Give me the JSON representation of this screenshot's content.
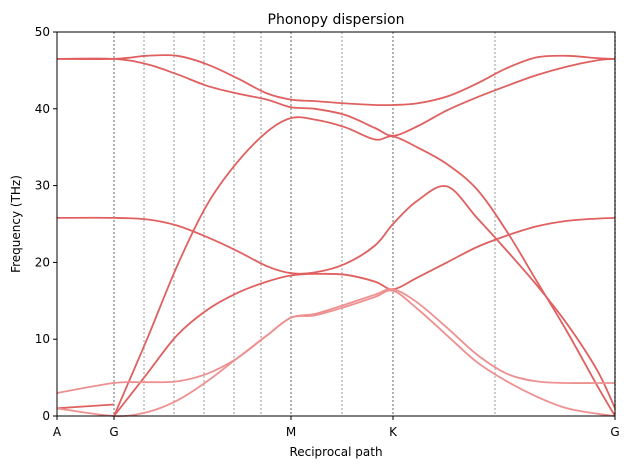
{
  "chart_data": {
    "type": "line",
    "title": "Phonopy dispersion",
    "xlabel": "Reciprocal path",
    "ylabel": "Frequency (THz)",
    "ylim": [
      0,
      50
    ],
    "yticks": [
      0,
      10,
      20,
      30,
      40,
      50
    ],
    "xlim": [
      0,
      9.3
    ],
    "xticks": [
      {
        "x": 0,
        "label": "A"
      },
      {
        "x": 0.95,
        "label": "G"
      },
      {
        "x": 3.9,
        "label": "M"
      },
      {
        "x": 5.6,
        "label": "K"
      },
      {
        "x": 9.3,
        "label": "G"
      }
    ],
    "segment_lines": {
      "color": "#999999",
      "positions": [
        0.95,
        3.9,
        5.6,
        9.3
      ]
    },
    "sub_lines": {
      "color": "#bbbbbb",
      "positions": [
        1.45,
        1.95,
        2.45,
        2.95,
        3.4,
        4.75,
        7.3
      ]
    },
    "grid": false,
    "legend": "none",
    "colors": {
      "primary": "#e06060",
      "secondary": "#ee9090"
    },
    "series": [
      {
        "color": "#e06060",
        "x": [
          0,
          0.95,
          1.5,
          2.0,
          2.5,
          3.0,
          3.5,
          3.9,
          4.3,
          4.8,
          5.3,
          5.6,
          6.0,
          6.5,
          7.0,
          7.5,
          8.0,
          8.5,
          9.0,
          9.3
        ],
        "y": [
          46.5,
          46.5,
          46.9,
          46.9,
          45.8,
          44.0,
          42.0,
          41.2,
          41.0,
          40.7,
          40.5,
          40.5,
          40.7,
          41.6,
          43.3,
          45.3,
          46.7,
          46.9,
          46.6,
          46.5
        ]
      },
      {
        "color": "#e06060",
        "x": [
          0,
          0.95,
          1.5,
          2.0,
          2.5,
          3.0,
          3.5,
          3.9,
          4.3,
          4.8,
          5.3,
          5.6,
          6.0,
          6.5,
          7.0,
          7.5,
          8.0,
          8.5,
          9.0,
          9.3
        ],
        "y": [
          46.5,
          46.5,
          45.8,
          44.5,
          43.0,
          42.0,
          41.2,
          40.2,
          40.0,
          39.2,
          37.5,
          36.5,
          37.7,
          39.8,
          41.5,
          43.0,
          44.4,
          45.5,
          46.3,
          46.5
        ]
      },
      {
        "color": "#e06060",
        "x": [
          0.95,
          1.5,
          2.0,
          2.5,
          3.0,
          3.5,
          3.9,
          4.3,
          4.8,
          5.3,
          5.6,
          6.0,
          6.5,
          7.0,
          7.5,
          8.0,
          8.5,
          9.0,
          9.3
        ],
        "y": [
          0.0,
          10.0,
          19.5,
          27.5,
          33.0,
          37.0,
          38.8,
          38.6,
          37.6,
          36.0,
          36.4,
          35.0,
          32.8,
          29.5,
          24.0,
          17.5,
          11.0,
          4.0,
          0.0
        ]
      },
      {
        "color": "#e06060",
        "x": [
          0,
          0.95,
          1.5,
          2.0,
          2.5,
          3.0,
          3.5,
          3.9,
          4.3,
          4.8,
          5.3,
          5.6,
          6.0,
          6.5,
          7.0,
          7.5,
          8.0,
          8.5,
          9.0,
          9.3
        ],
        "y": [
          25.8,
          25.8,
          25.6,
          24.8,
          23.3,
          21.5,
          19.5,
          18.6,
          18.7,
          19.8,
          22.2,
          25.0,
          28.0,
          29.9,
          25.8,
          21.5,
          17.0,
          12.0,
          6.0,
          1.0
        ]
      },
      {
        "color": "#e06060",
        "x": [
          0.95,
          1.5,
          2.0,
          2.5,
          3.0,
          3.5,
          3.9,
          4.3,
          4.8,
          5.3,
          5.6,
          6.0,
          6.5,
          7.0,
          7.5,
          8.0,
          8.5,
          9.0,
          9.3
        ],
        "y": [
          0.0,
          5.5,
          10.5,
          13.8,
          16.0,
          17.5,
          18.3,
          18.5,
          18.4,
          17.5,
          16.5,
          18.0,
          20.0,
          22.0,
          23.5,
          24.7,
          25.4,
          25.7,
          25.8
        ]
      },
      {
        "color": "#e06060",
        "x": [
          0,
          0.95
        ],
        "y": [
          1.0,
          1.5
        ]
      },
      {
        "color": "#ee9090",
        "x": [
          0,
          0.95,
          1.5,
          2.0,
          2.5,
          3.0,
          3.5,
          3.9,
          4.3,
          4.8,
          5.3,
          5.6,
          6.0,
          6.5,
          7.0,
          7.5,
          8.0,
          8.5,
          9.0,
          9.3
        ],
        "y": [
          3.0,
          4.3,
          4.4,
          4.5,
          5.5,
          7.5,
          10.5,
          12.8,
          13.3,
          14.5,
          15.8,
          16.5,
          14.8,
          11.5,
          8.0,
          5.5,
          4.5,
          4.3,
          4.3,
          4.3
        ]
      },
      {
        "color": "#ee9090",
        "x": [
          0,
          0.95,
          1.5,
          2.0,
          2.5,
          3.0,
          3.5,
          3.9,
          4.3,
          4.8,
          5.3,
          5.6,
          6.0,
          6.5,
          7.0,
          7.5,
          8.0,
          8.5,
          9.0,
          9.3
        ],
        "y": [
          1.0,
          0.0,
          0.5,
          2.0,
          4.5,
          7.5,
          10.5,
          12.8,
          13.1,
          14.2,
          15.5,
          16.3,
          14.0,
          10.5,
          7.0,
          4.5,
          2.5,
          1.0,
          0.3,
          0.0
        ]
      }
    ]
  }
}
